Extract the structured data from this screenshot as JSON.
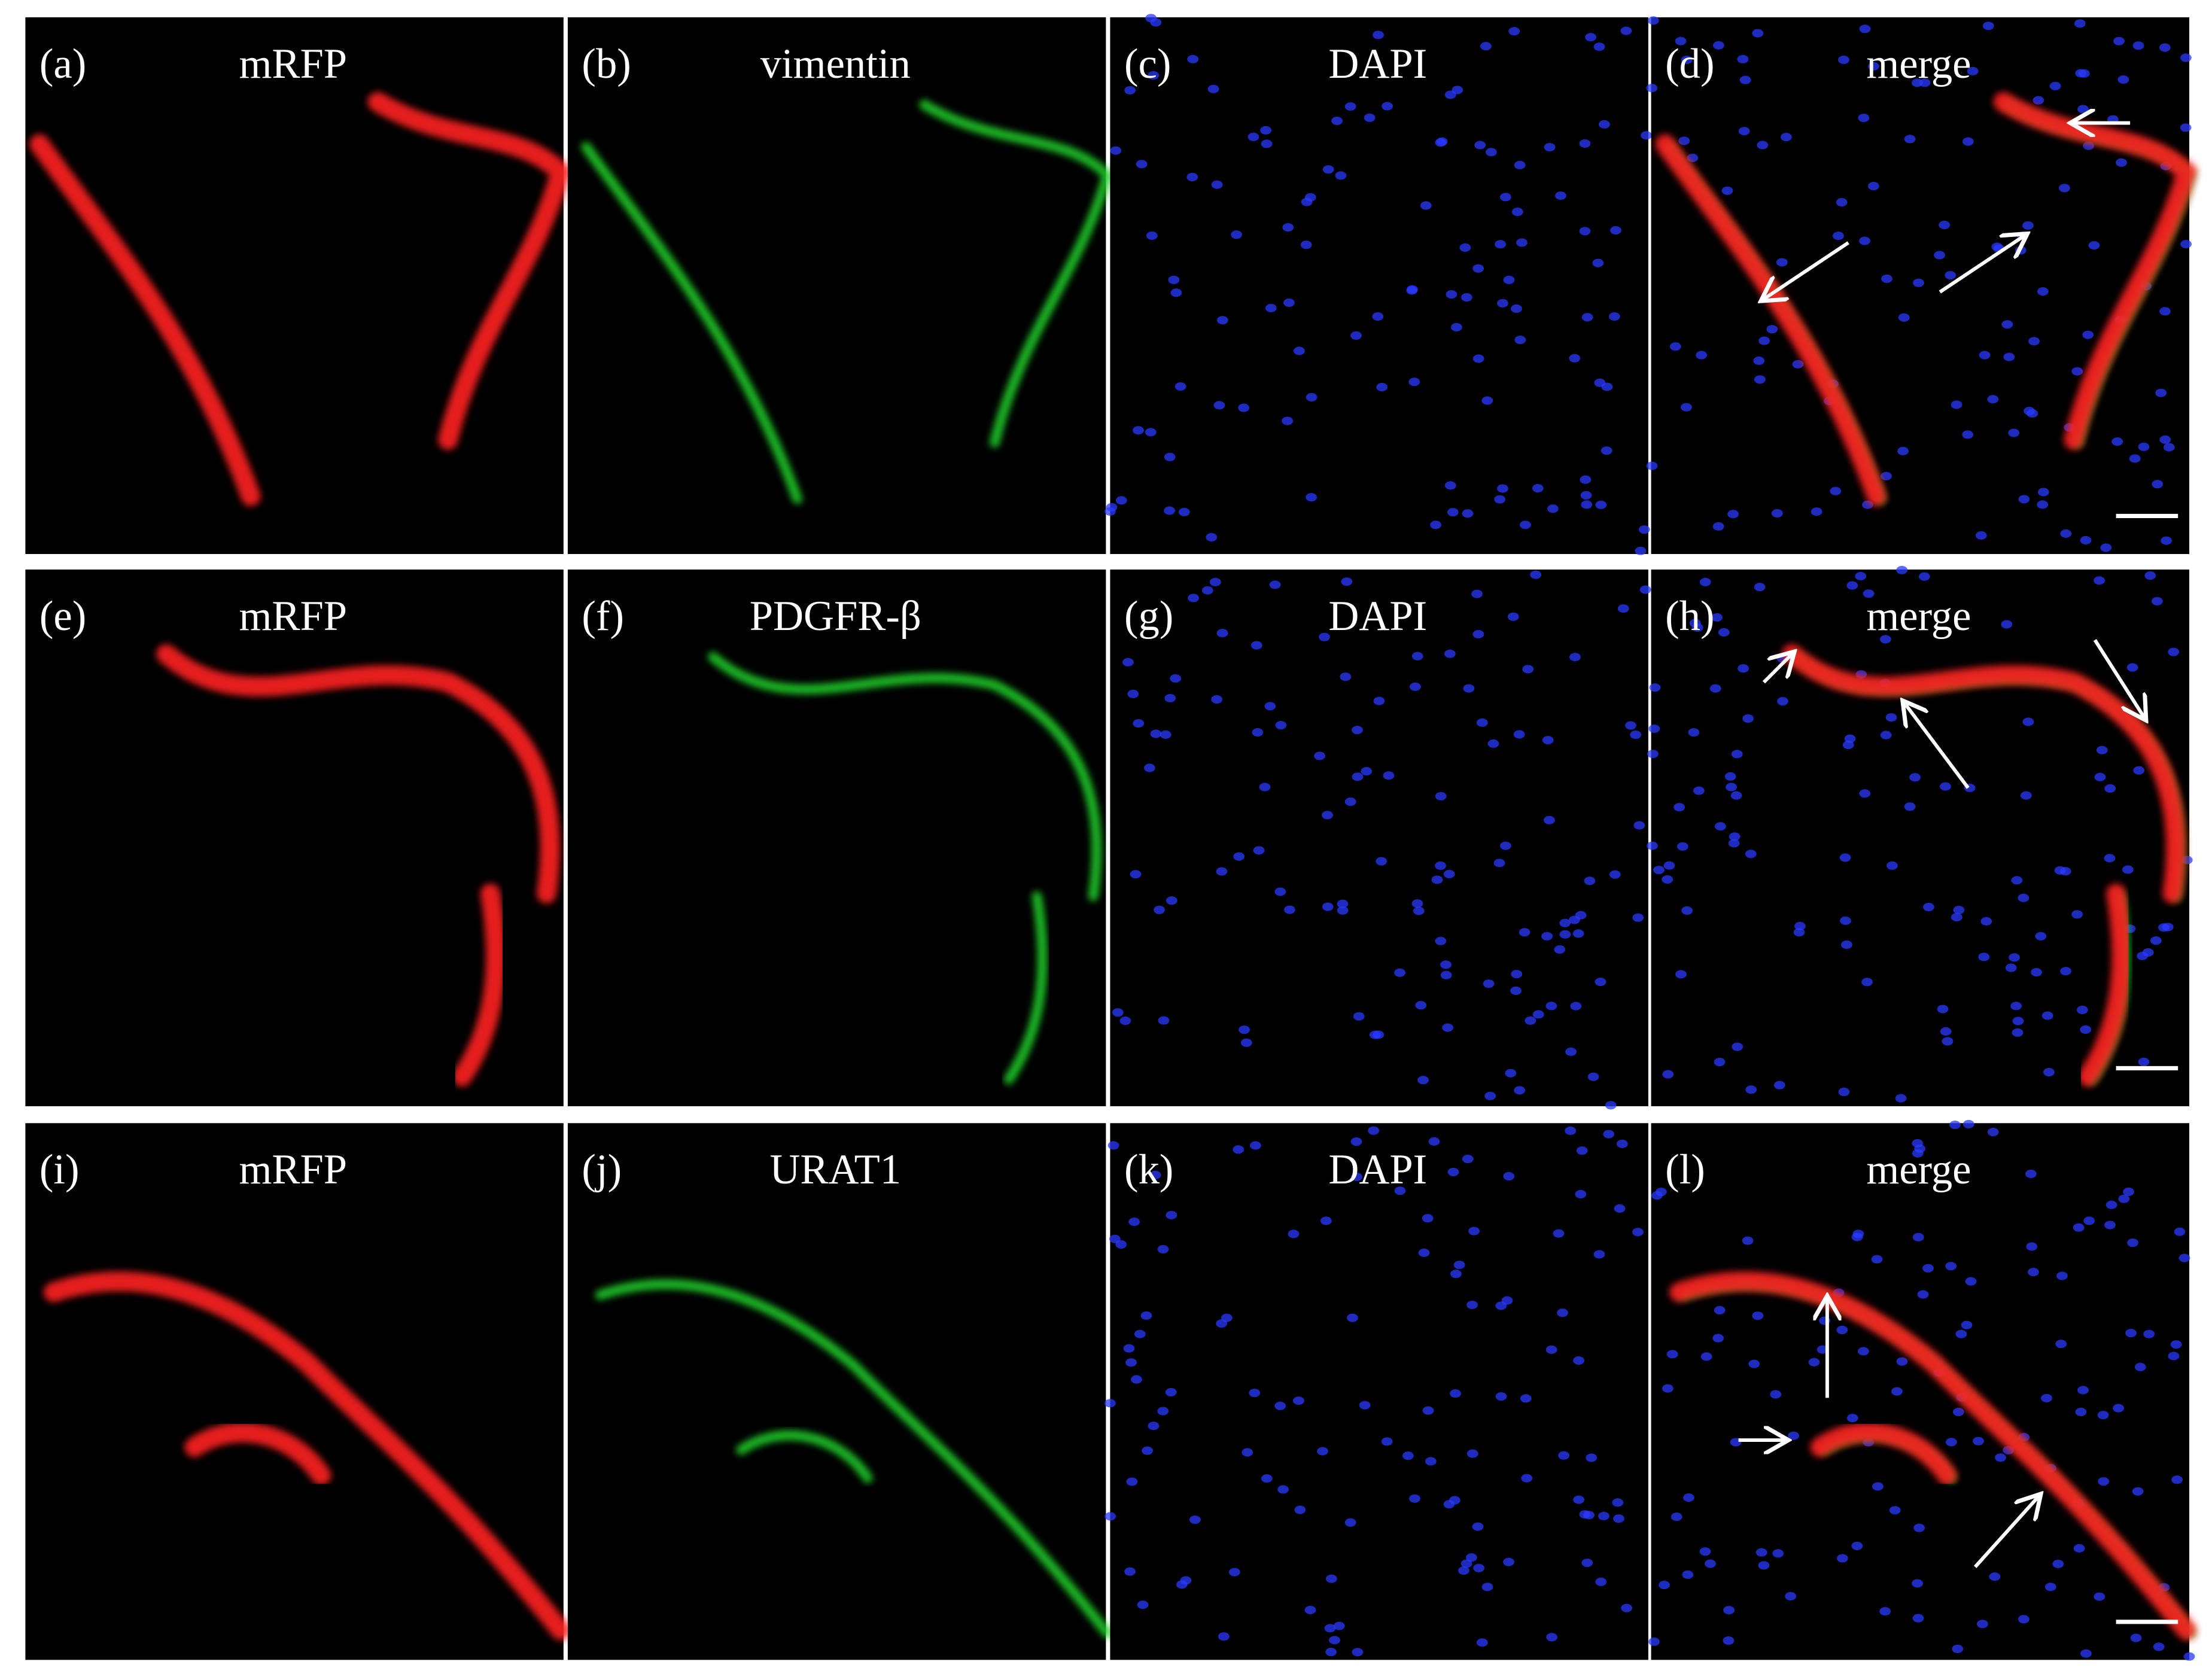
{
  "panels": [
    {
      "label": "(a)",
      "name": "mRFP"
    },
    {
      "label": "(b)",
      "name": "vimentin"
    },
    {
      "label": "(c)",
      "name": "DAPI"
    },
    {
      "label": "(d)",
      "name": "merge"
    },
    {
      "label": "(e)",
      "name": "mRFP"
    },
    {
      "label": "(f)",
      "name": "PDGFR-β"
    },
    {
      "label": "(g)",
      "name": "DAPI"
    },
    {
      "label": "(h)",
      "name": "merge"
    },
    {
      "label": "(i)",
      "name": "mRFP"
    },
    {
      "label": "(j)",
      "name": "URAT1"
    },
    {
      "label": "(k)",
      "name": "DAPI"
    },
    {
      "label": "(l)",
      "name": "merge"
    }
  ]
}
